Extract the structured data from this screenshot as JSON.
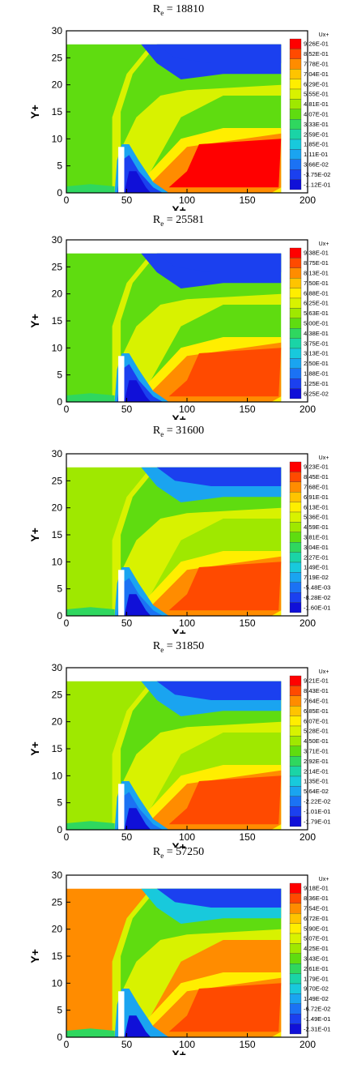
{
  "figure": {
    "panels": [
      {
        "title_prefix": "R",
        "title_sub": "e",
        "title_value": " = 18810",
        "chart_data": {
          "type": "heatmap",
          "xlabel": "X+",
          "ylabel": "Y+",
          "xlim": [
            0,
            200
          ],
          "ylim": [
            0,
            30
          ],
          "x_ticks": [
            "0",
            "50",
            "100",
            "150",
            "200"
          ],
          "y_ticks": [
            "0",
            "5",
            "10",
            "15",
            "20",
            "25",
            "30"
          ],
          "legend_title": "Ux+",
          "legend_position": "right",
          "legend_levels": [
            "9.26E-01",
            "8.52E-01",
            "7.78E-01",
            "7.04E-01",
            "6.29E-01",
            "5.55E-01",
            "4.81E-01",
            "4.07E-01",
            "3.33E-01",
            "2.59E-01",
            "1.85E-01",
            "1.11E-01",
            "3.66E-02",
            "-3.75E-02",
            "-1.12E-01"
          ]
        }
      },
      {
        "title_prefix": "R",
        "title_sub": "e",
        "title_value": " = 25581",
        "chart_data": {
          "type": "heatmap",
          "xlabel": "X+",
          "ylabel": "Y+",
          "xlim": [
            0,
            200
          ],
          "ylim": [
            0,
            30
          ],
          "x_ticks": [
            "0",
            "50",
            "100",
            "150",
            "200"
          ],
          "y_ticks": [
            "0",
            "5",
            "10",
            "15",
            "20",
            "25",
            "30"
          ],
          "legend_title": "Ux+",
          "legend_position": "right",
          "legend_levels": [
            "9.38E-01",
            "8.75E-01",
            "8.13E-01",
            "7.50E-01",
            "6.88E-01",
            "6.25E-01",
            "5.63E-01",
            "5.00E-01",
            "4.38E-01",
            "3.75E-01",
            "3.13E-01",
            "2.50E-01",
            "1.88E-01",
            "1.25E-01",
            "6.25E-02"
          ]
        }
      },
      {
        "title_prefix": "R",
        "title_sub": "e",
        "title_value": " = 31600",
        "chart_data": {
          "type": "heatmap",
          "xlabel": "X+",
          "ylabel": "Y+",
          "xlim": [
            0,
            200
          ],
          "ylim": [
            0,
            30
          ],
          "x_ticks": [
            "0",
            "50",
            "100",
            "150",
            "200"
          ],
          "y_ticks": [
            "0",
            "5",
            "10",
            "15",
            "20",
            "25",
            "30"
          ],
          "legend_title": "Ux+",
          "legend_position": "right",
          "legend_levels": [
            "9.23E-01",
            "8.45E-01",
            "7.68E-01",
            "6.91E-01",
            "6.13E-01",
            "5.36E-01",
            "4.59E-01",
            "3.81E-01",
            "3.04E-01",
            "2.27E-01",
            "1.49E-01",
            "7.19E-02",
            "-5.48E-03",
            "-8.28E-02",
            "-1.60E-01"
          ]
        }
      },
      {
        "title_prefix": "R",
        "title_sub": "e",
        "title_value": " = 31850",
        "chart_data": {
          "type": "heatmap",
          "xlabel": "X+",
          "ylabel": "Y+",
          "xlim": [
            0,
            200
          ],
          "ylim": [
            0,
            30
          ],
          "x_ticks": [
            "0",
            "50",
            "100",
            "150",
            "200"
          ],
          "y_ticks": [
            "0",
            "5",
            "10",
            "15",
            "20",
            "25",
            "30"
          ],
          "legend_title": "Ux+",
          "legend_position": "right",
          "legend_levels": [
            "9.21E-01",
            "8.43E-01",
            "7.64E-01",
            "6.85E-01",
            "6.07E-01",
            "5.28E-01",
            "4.50E-01",
            "3.71E-01",
            "2.92E-01",
            "2.14E-01",
            "1.35E-01",
            "5.64E-02",
            "-2.22E-02",
            "-1.01E-01",
            "-1.79E-01"
          ]
        }
      },
      {
        "title_prefix": "R",
        "title_sub": "e",
        "title_value": " = 57250",
        "chart_data": {
          "type": "heatmap",
          "xlabel": "X+",
          "ylabel": "Y+",
          "xlim": [
            0,
            200
          ],
          "ylim": [
            0,
            30
          ],
          "x_ticks": [
            "0",
            "50",
            "100",
            "150",
            "200"
          ],
          "y_ticks": [
            "0",
            "5",
            "10",
            "15",
            "20",
            "25",
            "30"
          ],
          "legend_title": "Ux+",
          "legend_position": "right",
          "legend_levels": [
            "9.18E-01",
            "8.36E-01",
            "7.54E-01",
            "6.72E-01",
            "5.90E-01",
            "5.07E-01",
            "4.25E-01",
            "3.43E-01",
            "2.61E-01",
            "1.79E-01",
            "9.70E-02",
            "1.49E-02",
            "-6.72E-02",
            "-1.49E-01",
            "-2.31E-01"
          ]
        }
      }
    ],
    "colormap": [
      "#ff0000",
      "#ff4a00",
      "#ff8c00",
      "#ffc400",
      "#ffee00",
      "#d8f200",
      "#9fe800",
      "#5fdc10",
      "#2fd75f",
      "#1ad4a6",
      "#18c9dc",
      "#1aa4f0",
      "#1b72f4",
      "#1b40ef",
      "#1010d8"
    ],
    "bg_color": "#ffffff"
  }
}
